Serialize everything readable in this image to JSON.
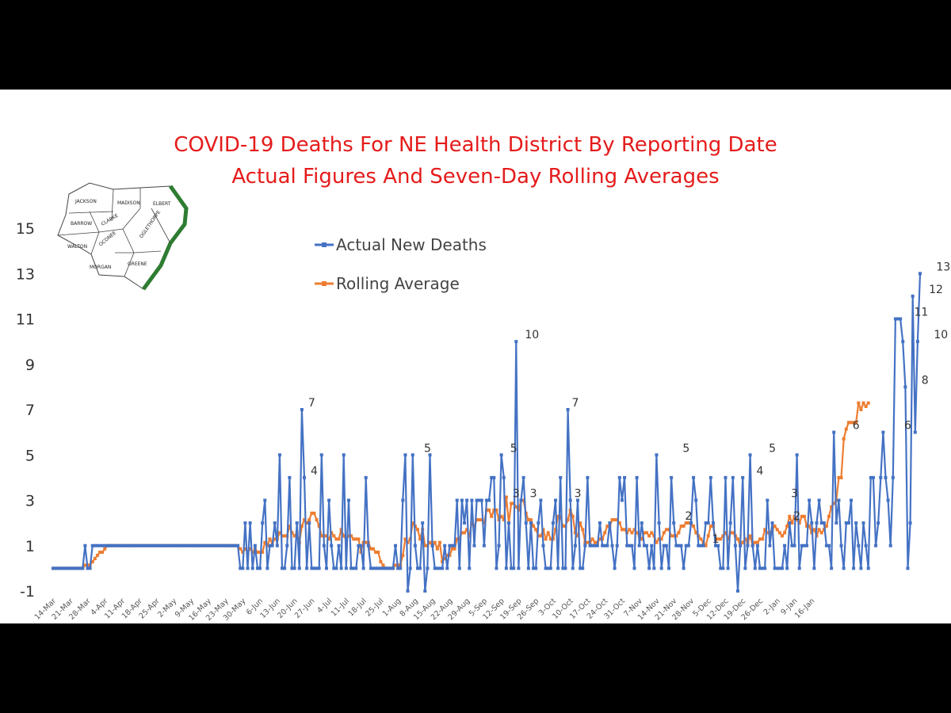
{
  "colors": {
    "actual": "#4472c4",
    "rolling": "#ed7d31",
    "title": "#e51b1b",
    "map_border": "#2e7d32"
  },
  "map": {
    "icon": "ne-georgia-counties-map",
    "labels": [
      "JACKSON",
      "MADISON",
      "ELBERT",
      "BARROW",
      "CLARKE",
      "OGLETHORPE",
      "WALTON",
      "OCONEE",
      "MORGAN",
      "GREENE"
    ]
  },
  "chart_data": {
    "type": "line",
    "title": [
      "COVID-19 Deaths For NE Health District By Reporting Date",
      "Actual Figures And Seven-Day Rolling Averages"
    ],
    "xlabel": "",
    "ylabel": "",
    "ylim": [
      -1,
      15
    ],
    "yticks": [
      -1,
      1,
      3,
      5,
      7,
      9,
      11,
      13,
      15
    ],
    "x_start": "14-Mar",
    "x_end": "19-Jan",
    "x_ticks": [
      "14-Mar",
      "21-Mar",
      "28-Mar",
      "4-Apr",
      "11-Apr",
      "18-Apr",
      "25-Apr",
      "2-May",
      "9-May",
      "16-May",
      "23-May",
      "30-May",
      "6-Jun",
      "13-Jun",
      "20-Jun",
      "27-Jun",
      "4-Jul",
      "11-Jul",
      "18-Jul",
      "25-Jul",
      "1-Aug",
      "8-Aug",
      "15-Aug",
      "22-Aug",
      "29-Aug",
      "5-Sep",
      "12-Sep",
      "19-Sep",
      "26-Sep",
      "3-Oct",
      "10-Oct",
      "17-Oct",
      "24-Oct",
      "31-Oct",
      "7-Nov",
      "14-Nov",
      "21-Nov",
      "28-Nov",
      "5-Dec",
      "12-Dec",
      "19-Dec",
      "26-Dec",
      "2-Jan",
      "9-Jan",
      "16-Jan"
    ],
    "legend": {
      "placement": "upper-left",
      "entries": [
        "Actual New Deaths",
        "Rolling Average"
      ]
    },
    "series": [
      {
        "name": "Actual New Deaths",
        "values": [
          0,
          0,
          0,
          0,
          0,
          0,
          0,
          0,
          0,
          0,
          0,
          0,
          0,
          1,
          0,
          0,
          1,
          1,
          1,
          1,
          1,
          1,
          1,
          1,
          1,
          1,
          1,
          1,
          1,
          1,
          1,
          1,
          1,
          1,
          1,
          1,
          1,
          1,
          1,
          1,
          1,
          1,
          1,
          1,
          1,
          1,
          1,
          1,
          1,
          1,
          1,
          1,
          1,
          1,
          1,
          1,
          1,
          1,
          1,
          1,
          1,
          1,
          1,
          1,
          1,
          1,
          1,
          1,
          1,
          1,
          1,
          1,
          1,
          1,
          1,
          1,
          0,
          0,
          2,
          0,
          2,
          0,
          1,
          0,
          0,
          2,
          3,
          0,
          1,
          1,
          2,
          1,
          5,
          0,
          0,
          1,
          4,
          0,
          0,
          2,
          0,
          7,
          4,
          0,
          2,
          0,
          0,
          0,
          0,
          5,
          1,
          0,
          3,
          1,
          0,
          0,
          1,
          0,
          5,
          0,
          3,
          0,
          0,
          0,
          1,
          1,
          0,
          4,
          1,
          0,
          0,
          0,
          0,
          0,
          0,
          0,
          0,
          0,
          0,
          1,
          0,
          0,
          3,
          5,
          -1,
          0,
          5,
          1,
          0,
          0,
          2,
          -1,
          0,
          5,
          1,
          0,
          0,
          0,
          0,
          1,
          0,
          1,
          1,
          1,
          3,
          0,
          3,
          2,
          3,
          0,
          3,
          1,
          3,
          3,
          3,
          1,
          3,
          3,
          4,
          4,
          0,
          1,
          5,
          4,
          0,
          2,
          0,
          0,
          10,
          0,
          3,
          4,
          2,
          0,
          2,
          0,
          0,
          2,
          3,
          1,
          0,
          0,
          0,
          2,
          3,
          0,
          4,
          0,
          0,
          7,
          3,
          0,
          1,
          3,
          0,
          0,
          1,
          4,
          1,
          1,
          1,
          1,
          2,
          1,
          1,
          1,
          2,
          1,
          0,
          1,
          4,
          3,
          4,
          1,
          1,
          1,
          0,
          4,
          1,
          2,
          1,
          1,
          0,
          1,
          0,
          5,
          2,
          0,
          1,
          1,
          0,
          4,
          2,
          1,
          1,
          1,
          0,
          1,
          1,
          2,
          4,
          3,
          1,
          1,
          1,
          2,
          2,
          4,
          2,
          1,
          1,
          0,
          0,
          4,
          0,
          2,
          4,
          1,
          -1,
          1,
          4,
          0,
          1,
          5,
          1,
          0,
          1,
          0,
          0,
          0,
          3,
          1,
          2,
          0,
          0,
          0,
          0,
          1,
          0,
          2,
          1,
          1,
          5,
          0,
          1,
          1,
          1,
          3,
          2,
          0,
          2,
          3,
          2,
          2,
          1,
          1,
          0,
          6,
          2,
          3,
          1,
          0,
          2,
          2,
          3,
          0,
          2,
          1,
          0,
          2,
          1,
          0,
          4,
          4,
          1,
          2,
          4,
          6,
          4,
          3,
          1,
          4,
          11,
          11,
          11,
          10,
          8,
          0,
          2,
          12,
          6,
          10,
          13
        ]
      },
      {
        "name": "Rolling Average",
        "values": [
          0,
          0,
          0,
          0,
          0,
          0,
          0,
          0,
          0,
          0,
          0,
          0,
          0,
          0.14,
          0.14,
          0.14,
          0.29,
          0.43,
          0.57,
          0.71,
          0.71,
          0.86,
          1,
          1,
          1,
          1,
          1,
          1,
          1,
          1,
          1,
          1,
          1,
          1,
          1,
          1,
          1,
          1,
          1,
          1,
          1,
          1,
          1,
          1,
          1,
          1,
          1,
          1,
          1,
          1,
          1,
          1,
          1,
          1,
          1,
          1,
          1,
          1,
          1,
          1,
          1,
          1,
          1,
          1,
          1,
          1,
          1,
          1,
          1,
          1,
          1,
          1,
          1,
          1,
          1,
          1,
          0.86,
          0.71,
          0.86,
          0.71,
          0.86,
          0.71,
          0.86,
          0.71,
          0.71,
          0.71,
          1.14,
          1,
          1.29,
          1.14,
          1.29,
          1.29,
          1.57,
          1.43,
          1.43,
          1.43,
          1.86,
          1.57,
          1.43,
          1.57,
          1.14,
          1.86,
          2.14,
          2,
          2.14,
          2.43,
          2.43,
          2.14,
          1.86,
          1.43,
          1.43,
          1.43,
          1.29,
          1.57,
          1.43,
          1.29,
          1.29,
          1.71,
          1.43,
          1.29,
          1.43,
          1.43,
          1.29,
          1.29,
          1.29,
          0.71,
          1.14,
          1.14,
          1.14,
          0.86,
          0.86,
          0.71,
          0.71,
          0.29,
          0.14,
          0,
          0,
          0,
          0,
          0.14,
          0.14,
          0.14,
          0.57,
          1.29,
          1.14,
          1.29,
          2,
          1.86,
          1.71,
          1.29,
          1.71,
          1,
          1,
          1.14,
          1,
          1.14,
          0.86,
          1.14,
          0.29,
          0.43,
          0.57,
          0.57,
          0.86,
          0.86,
          1.29,
          1.29,
          1.57,
          1.57,
          1.71,
          1.43,
          2,
          1.86,
          2.14,
          2.14,
          2.14,
          2,
          2.57,
          2.57,
          2.29,
          2.57,
          2.57,
          2.14,
          2.29,
          2.14,
          3.14,
          2,
          2.86,
          2.86,
          2.71,
          2.57,
          3,
          3,
          2.43,
          2.14,
          2.14,
          1.86,
          1.71,
          1.43,
          1.43,
          1.71,
          1.29,
          1.57,
          1.29,
          1.29,
          1.71,
          2.29,
          2.29,
          1.86,
          1.86,
          2.14,
          2.57,
          2.29,
          1.57,
          1.43,
          2,
          1.71,
          1.14,
          1.14,
          1.14,
          1.29,
          1.14,
          1.14,
          1.29,
          1.29,
          1.57,
          1.86,
          1.86,
          2.14,
          2.14,
          2.14,
          2,
          1.71,
          1.71,
          1.57,
          1.71,
          1.57,
          1.71,
          1.57,
          1.43,
          1.29,
          1.57,
          1.57,
          1.43,
          1.57,
          1.43,
          1.14,
          1.29,
          1.29,
          1.57,
          1.71,
          1.71,
          1.43,
          1.43,
          1.43,
          1.57,
          1.86,
          1.86,
          2,
          2,
          2,
          1.86,
          1.57,
          1.43,
          1.29,
          1.14,
          1,
          1.43,
          1.86,
          1.86,
          1.29,
          1.29,
          1.29,
          1.43,
          1.57,
          1.29,
          1.57,
          1.57,
          1.43,
          1.29,
          1,
          1.14,
          1.29,
          1.14,
          1.43,
          1,
          1.14,
          1.14,
          1.29,
          1.29,
          1.71,
          1.57,
          1.57,
          1.71,
          1.86,
          1.71,
          1.57,
          1.43,
          1.57,
          1.86,
          2.29,
          2,
          2.29,
          2.14,
          2,
          2.29,
          2.29,
          1.86,
          1.86,
          1.57,
          1.71,
          1.43,
          1.71,
          1.57,
          1.71,
          1.86,
          2.29,
          2.71,
          2.86,
          3,
          4,
          4,
          5.71,
          6.14,
          6.43,
          6.43,
          6.43,
          6.43,
          7.29,
          7,
          7.29,
          7.14,
          7.29
        ]
      }
    ],
    "data_labels": [
      {
        "text": "7",
        "x_index": 101
      },
      {
        "text": "4",
        "x_index": 102
      },
      {
        "text": "5",
        "x_index": 148
      },
      {
        "text": "5",
        "x_index": 183
      },
      {
        "text": "3",
        "x_index": 184
      },
      {
        "text": "10",
        "x_index": 189
      },
      {
        "text": "3",
        "x_index": 191
      },
      {
        "text": "7",
        "x_index": 208
      },
      {
        "text": "3",
        "x_index": 209
      },
      {
        "text": "5",
        "x_index": 253
      },
      {
        "text": "2",
        "x_index": 254
      },
      {
        "text": "1",
        "x_index": 265
      },
      {
        "text": "4",
        "x_index": 283
      },
      {
        "text": "5",
        "x_index": 288
      },
      {
        "text": "3",
        "x_index": 297
      },
      {
        "text": "2",
        "x_index": 298
      },
      {
        "text": "6",
        "x_index": 322
      },
      {
        "text": "6",
        "x_index": 343
      },
      {
        "text": "11",
        "x_index": 347
      },
      {
        "text": "8",
        "x_index": 350
      },
      {
        "text": "12",
        "x_index": 353
      },
      {
        "text": "10",
        "x_index": 355
      },
      {
        "text": "13",
        "x_index": 356
      }
    ]
  }
}
